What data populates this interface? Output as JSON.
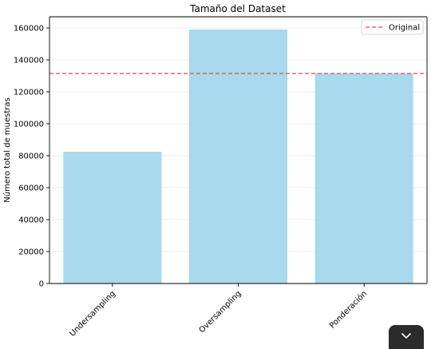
{
  "chart_data": {
    "type": "bar",
    "title": "Tamaño del Dataset",
    "xlabel": "",
    "ylabel": "Número total de muestras",
    "categories": [
      "Undersampling",
      "Oversampling",
      "Ponderación"
    ],
    "values": [
      82500,
      159000,
      131500
    ],
    "ylim": [
      0,
      167000
    ],
    "yticks": [
      0,
      20000,
      40000,
      60000,
      80000,
      100000,
      120000,
      140000,
      160000
    ],
    "ytick_labels": [
      "0",
      "20000",
      "40000",
      "60000",
      "80000",
      "100000",
      "120000",
      "140000",
      "160000"
    ],
    "bar_color": "#a8d9ed",
    "reference_line": {
      "value": 131500,
      "label": "Original",
      "color": "#e8474a",
      "style": "dashed"
    },
    "legend_position": "top-right",
    "grid": true,
    "xtick_rotation": 45
  },
  "overlay": {
    "scroll_icon": "chevron-down-icon"
  }
}
